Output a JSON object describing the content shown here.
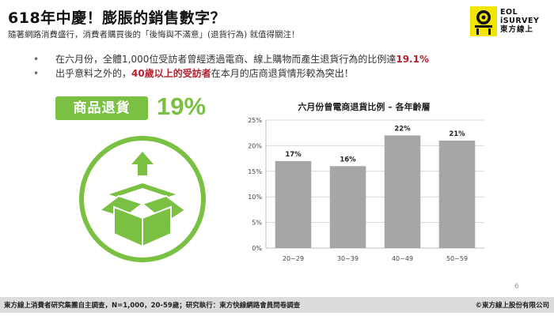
{
  "header": {
    "title": "618年中慶！膨脹的銷售數字？",
    "subtitle": "隨著網路消費盛行，消費者購買後的「後悔與不滿意」(退貨行為) 就值得關注！"
  },
  "logo": {
    "line1": "EOL",
    "line2": "iSURVEY",
    "line3": "東方線上",
    "icon": "eol-logo-icon",
    "color": "#f2e500"
  },
  "bullets": [
    {
      "pre": "在六月份，全體1,000位受訪者曾經透過電商、線上購物而產生退貨行為的比例達",
      "highlight": "19.1%",
      "post": ""
    },
    {
      "pre": "出乎意料之外的，",
      "highlight": "40歲以上的受訪者",
      "post": "在本月的店商退貨情形較為突出！"
    }
  ],
  "feature": {
    "badge_label": "商品退貨",
    "percent": "19%",
    "icon": "return-box-icon",
    "accent": "#7ac143"
  },
  "chart_data": {
    "type": "bar",
    "title": "六月份曾電商退貨比例 – 各年齡層",
    "categories": [
      "20~29",
      "30~39",
      "40~49",
      "50~59"
    ],
    "values": [
      17,
      16,
      22,
      21
    ],
    "value_labels": [
      "17%",
      "16%",
      "22%",
      "21%"
    ],
    "yticks": [
      "0%",
      "5%",
      "10%",
      "15%",
      "20%",
      "25%"
    ],
    "ylim": [
      0,
      25
    ],
    "grid": true,
    "bar_color": "#a6a6a6"
  },
  "page_number": "6",
  "footer": {
    "source": "東方線上消費者研究集團自主調查，N=1,000，20-59歲；研究執行：東方快線網路會員問卷調查",
    "copyright": "©東方線上股份有限公司"
  }
}
